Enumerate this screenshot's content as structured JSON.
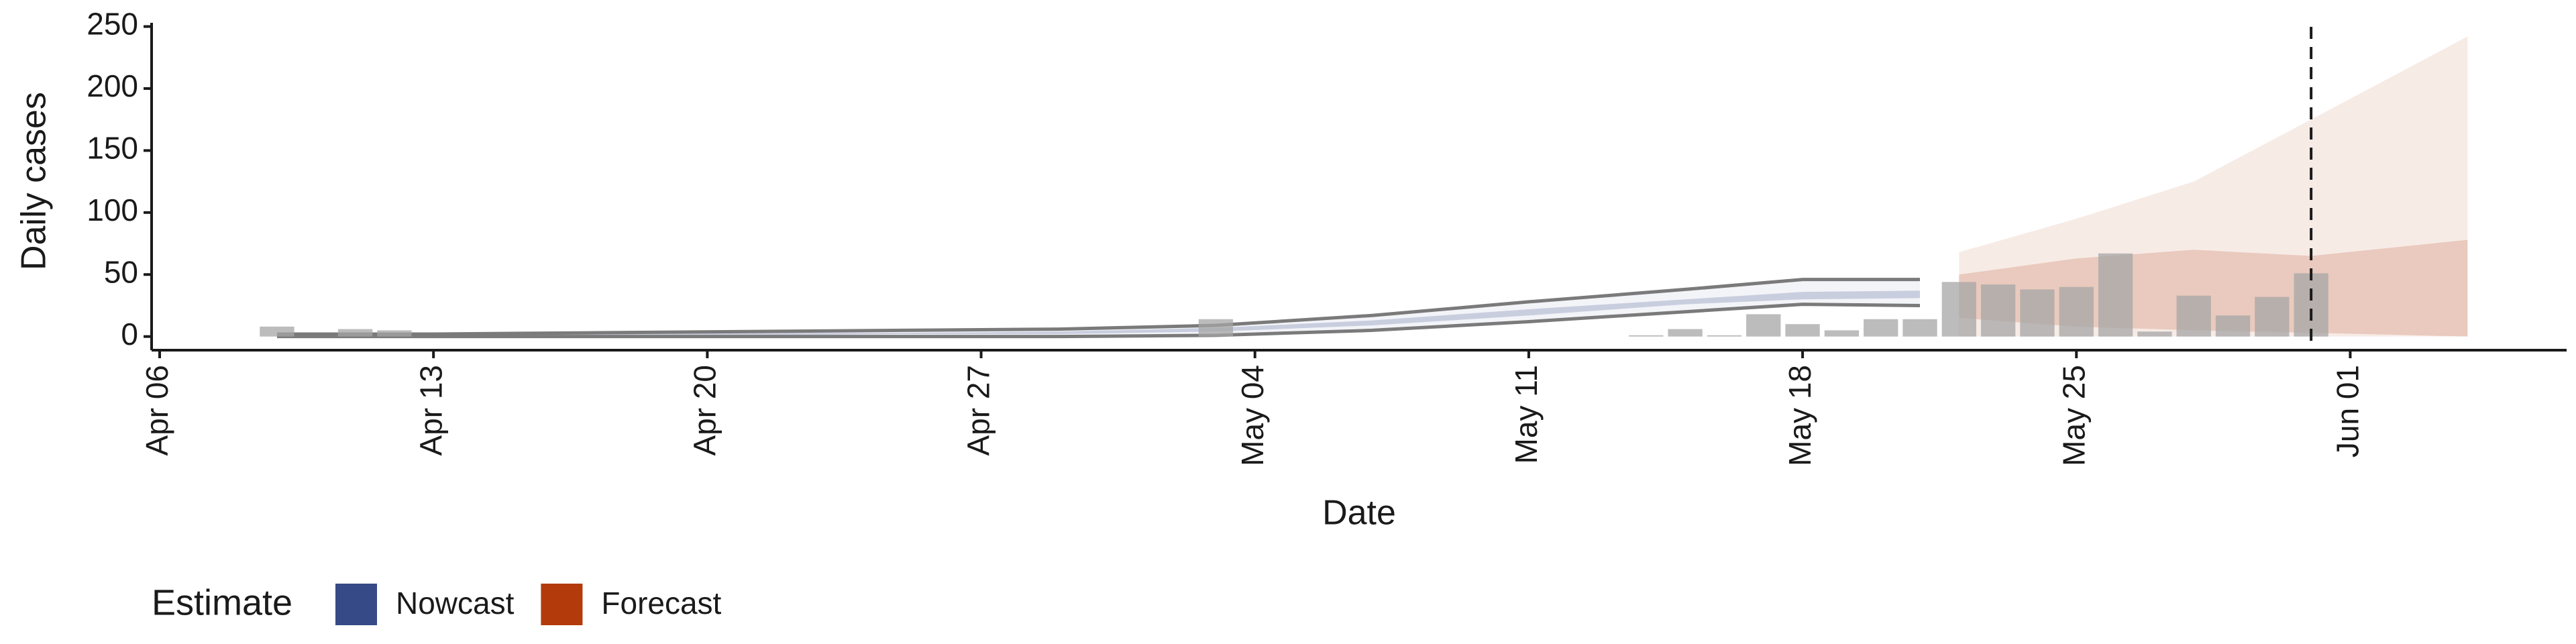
{
  "chart_data": {
    "type": "nowcast",
    "x_label": "Date",
    "y_label": "Daily cases",
    "legend_title": "Estimate",
    "xlim": [
      "Apr 06",
      "Jun 06"
    ],
    "ylim": [
      -11,
      253
    ],
    "xticks": [
      "Apr 06",
      "Apr 13",
      "Apr 20",
      "Apr 27",
      "May 04",
      "May 11",
      "May 18",
      "May 25",
      "Jun 01"
    ],
    "yticks": [
      0,
      50,
      100,
      150,
      200,
      250
    ],
    "vline": "May 31",
    "bars": {
      "color": "#a6a6a6",
      "x": [
        "Apr 09",
        "Apr 11",
        "Apr 12",
        "May 03",
        "May 14",
        "May 15",
        "May 16",
        "May 17",
        "May 18",
        "May 19",
        "May 20",
        "May 21",
        "May 22",
        "May 23",
        "May 24",
        "May 25",
        "May 26",
        "May 27",
        "May 28",
        "May 29",
        "May 30",
        "May 31"
      ],
      "values": [
        8,
        6,
        5,
        14,
        1,
        6,
        1,
        18,
        10,
        5,
        14,
        14,
        44,
        42,
        38,
        40,
        67,
        4,
        33,
        17,
        32,
        51
      ]
    },
    "series": [
      {
        "name": "Nowcast",
        "color": "#354a87",
        "x": [
          "Apr 09",
          "Apr 13",
          "Apr 17",
          "Apr 21",
          "Apr 25",
          "Apr 29",
          "May 03",
          "May 07",
          "May 11",
          "May 15",
          "May 18",
          "May 21"
        ],
        "upper": [
          2,
          2,
          3,
          4,
          5,
          6,
          9,
          17,
          28,
          38,
          46,
          46
        ],
        "lower": [
          0,
          0,
          0,
          0,
          0,
          0,
          1,
          5,
          12,
          20,
          26,
          25
        ],
        "inner_upper": [
          1,
          1,
          2,
          3,
          3,
          4,
          7,
          13,
          22,
          30,
          36,
          37
        ],
        "inner_lower": [
          1,
          1,
          1,
          1,
          2,
          2,
          4,
          9,
          17,
          26,
          30,
          31
        ]
      },
      {
        "name": "Forecast",
        "color": "#b33a0a",
        "x": [
          "May 22",
          "May 25",
          "May 28",
          "May 31",
          "Jun 04"
        ],
        "upper": [
          68,
          95,
          125,
          175,
          242
        ],
        "lower": [
          0,
          0,
          0,
          0,
          0
        ],
        "inner_upper": [
          50,
          63,
          70,
          65,
          78
        ],
        "inner_lower": [
          15,
          8,
          5,
          3,
          0
        ]
      }
    ]
  }
}
